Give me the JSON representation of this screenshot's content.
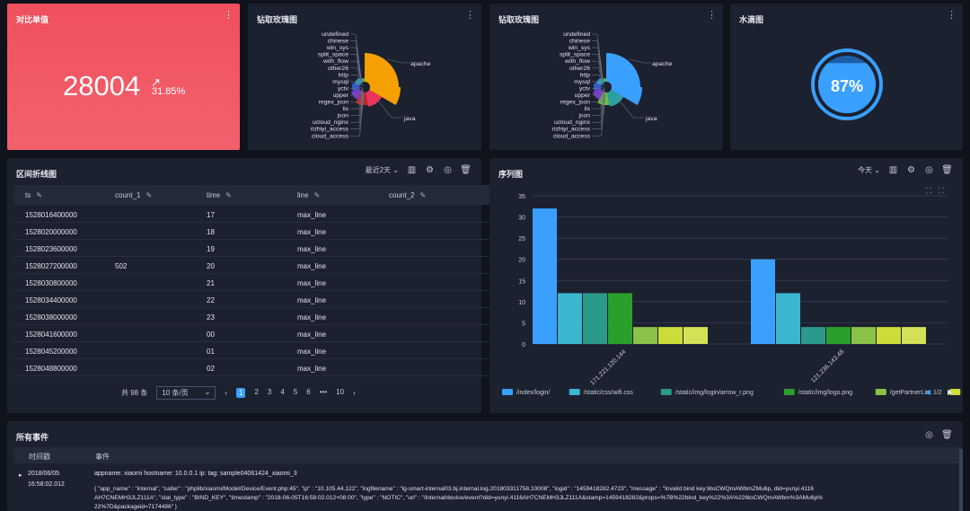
{
  "kpi": {
    "title": "对比单值",
    "value": "28004",
    "arrow": "↗",
    "percent": "31.85%"
  },
  "rose1": {
    "title": "钻取玫瑰图"
  },
  "rose2": {
    "title": "钻取玫瑰图"
  },
  "gauge": {
    "title": "水滴图",
    "value": "87%",
    "fraction": 0.87
  },
  "rose_labels_left": [
    "undefined",
    "chinese",
    "win_sys",
    "split_space",
    "with_flow",
    "other26",
    "http",
    "mysql",
    "yctv",
    "upper",
    "regex_json",
    "lis",
    "json",
    "ucloud_nginx",
    "rizhiyi_access",
    "cloud_access"
  ],
  "rose_labels_right": [
    "apache",
    "java"
  ],
  "colors": {
    "apache": "#f5a000",
    "java": "#e8365f",
    "accent": "#3aa0ff"
  },
  "interval": {
    "title": "区间折线图",
    "range_label": "最近2天",
    "columns": [
      "ts",
      "count_1",
      "time",
      "line",
      "count_2"
    ],
    "rows": [
      [
        "1528016400000",
        "",
        "17",
        "max_line",
        ""
      ],
      [
        "1528020000000",
        "",
        "18",
        "max_line",
        ""
      ],
      [
        "1528023600000",
        "",
        "19",
        "max_line",
        ""
      ],
      [
        "1528027200000",
        "502",
        "20",
        "max_line",
        ""
      ],
      [
        "1528030800000",
        "",
        "21",
        "max_line",
        ""
      ],
      [
        "1528034400000",
        "",
        "22",
        "max_line",
        ""
      ],
      [
        "1528038000000",
        "",
        "23",
        "max_line",
        ""
      ],
      [
        "1528041600000",
        "",
        "00",
        "max_line",
        ""
      ],
      [
        "1528045200000",
        "",
        "01",
        "max_line",
        ""
      ],
      [
        "1528048800000",
        "",
        "02",
        "max_line",
        ""
      ]
    ],
    "pager": {
      "total": "共 98 条",
      "page_size": "10 条/页",
      "pages": [
        "1",
        "2",
        "3",
        "4",
        "5",
        "6",
        "•••",
        "10"
      ],
      "prev": "‹",
      "next": "›"
    }
  },
  "series_panel": {
    "title": "序列图",
    "range_label": "今天",
    "legend_page": "1/2"
  },
  "chart_data": {
    "type": "bar",
    "categories": [
      "171.221.120.144",
      "121.236.143.48"
    ],
    "series": [
      {
        "name": "/index/login/",
        "values": [
          32,
          20
        ],
        "color": "#3aa0ff"
      },
      {
        "name": "/static/css/wifi.css",
        "values": [
          12,
          12
        ],
        "color": "#3bb5d0"
      },
      {
        "name": "/static/img/login/arrow_r.png",
        "values": [
          12,
          4
        ],
        "color": "#2a9a8a"
      },
      {
        "name": "/static/img/logo.png",
        "values": [
          12,
          4
        ],
        "color": "#2aa02a"
      },
      {
        "name": "/getPartnerList",
        "values": [
          4,
          4
        ],
        "color": "#8bc34a"
      },
      {
        "name": "",
        "values": [
          4,
          4
        ],
        "color": "#cddc39"
      },
      {
        "name": "",
        "values": [
          4,
          4
        ],
        "color": "#d4e157"
      }
    ],
    "yticks": [
      0,
      5,
      10,
      15,
      20,
      25,
      30,
      35
    ],
    "ylim": [
      0,
      35
    ]
  },
  "events": {
    "title": "所有事件",
    "col_time": "时间戳",
    "col_event": "事件",
    "time_date": "2018/06/05",
    "time_clock": "16:58:02.012",
    "line1": "appname:  xiaomi      hostname:  10.0.0.1      ip:           tag:  sample04061424_xiaomi_3",
    "line2": "{ \"app_name\" : \"internal\", \"caller\" : \"phplib/xiaomi/Model/Device/Event.php:45\", \"ip\" : \"10.105.44.122\", \"logfilename\" : \"lg-smart-internal03.bj.internal.log.201803311758.10008\", \"logid\" : \"1459418282.4723\", \"message\" : \"Invalid bind key:6toCWQmAWbmZMu6p, did=yunyi.4116",
    "line3": "AH7CNEMH3JLZ111A\", \"stat_type\" : \"BIND_KEY\", \"timestamp\" : \"2018-06-05T16:58:02.012+08:00\", \"type\" : \"NOTIC\", \"url\" : \"/internal/device/event?did=yunyi.4116AH7CNEMH3JLZ111A&stamp=1459418282&props=%7B%22bind_key%22%3A%226toCWQmAWbm%3AMu6p%",
    "line4": "22%7D&packageid=7174496\" }"
  }
}
